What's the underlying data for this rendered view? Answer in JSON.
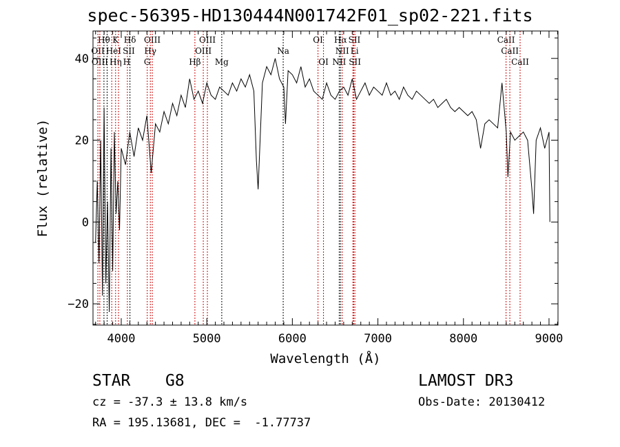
{
  "chart_data": {
    "type": "line",
    "title": "spec-56395-HD130444N001742F01_sp02-221.fits",
    "xlabel": "Wavelength (Å)",
    "ylabel": "Flux (relative)",
    "xlim": [
      3670,
      9105
    ],
    "ylim": [
      -25.2,
      46.7
    ],
    "xticks": [
      4000,
      5000,
      6000,
      7000,
      8000,
      9000
    ],
    "yticks": [
      -20,
      0,
      20,
      40
    ],
    "x": [
      3700,
      3720,
      3740,
      3760,
      3780,
      3800,
      3820,
      3840,
      3860,
      3880,
      3900,
      3920,
      3940,
      3960,
      3980,
      4000,
      4050,
      4100,
      4150,
      4200,
      4250,
      4300,
      4350,
      4400,
      4450,
      4500,
      4550,
      4600,
      4650,
      4700,
      4750,
      4800,
      4850,
      4900,
      4950,
      5000,
      5050,
      5100,
      5150,
      5200,
      5250,
      5300,
      5350,
      5400,
      5450,
      5500,
      5550,
      5580,
      5600,
      5650,
      5700,
      5750,
      5800,
      5850,
      5900,
      5920,
      5950,
      6000,
      6050,
      6100,
      6150,
      6200,
      6250,
      6300,
      6350,
      6400,
      6450,
      6500,
      6550,
      6600,
      6650,
      6700,
      6750,
      6800,
      6850,
      6900,
      6950,
      7000,
      7050,
      7100,
      7150,
      7200,
      7250,
      7300,
      7350,
      7400,
      7450,
      7500,
      7550,
      7600,
      7650,
      7700,
      7750,
      7800,
      7850,
      7900,
      7950,
      8000,
      8050,
      8100,
      8150,
      8200,
      8250,
      8300,
      8350,
      8400,
      8450,
      8500,
      8520,
      8550,
      8600,
      8650,
      8700,
      8750,
      8800,
      8820,
      8850,
      8900,
      8950,
      9000,
      9010
    ],
    "y": [
      -5,
      10,
      -10,
      20,
      -18,
      28,
      -15,
      5,
      -22,
      18,
      -12,
      22,
      2,
      10,
      -2,
      18,
      14,
      22,
      16,
      23,
      20,
      26,
      12,
      24,
      22,
      27,
      24,
      29,
      26,
      31,
      28,
      35,
      30,
      32,
      29,
      34,
      31,
      30,
      33,
      32,
      31,
      34,
      32,
      35,
      33,
      36,
      32,
      15,
      8,
      34,
      38,
      36,
      40,
      35,
      33,
      24,
      37,
      36,
      34,
      38,
      33,
      35,
      32,
      31,
      30,
      34,
      31,
      30,
      32,
      33,
      31,
      35,
      30,
      32,
      34,
      31,
      33,
      32,
      31,
      34,
      31,
      32,
      30,
      33,
      31,
      30,
      32,
      31,
      30,
      29,
      30,
      28,
      29,
      30,
      28,
      27,
      28,
      27,
      26,
      27,
      25,
      18,
      24,
      25,
      24,
      23,
      34,
      22,
      11,
      22,
      20,
      21,
      22,
      20,
      8,
      2,
      20,
      23,
      18,
      22,
      0
    ],
    "lines": [
      {
        "name": "Hθ",
        "wave": 3798,
        "row": 0,
        "color": "#000000"
      },
      {
        "name": "K",
        "wave": 3934,
        "row": 0,
        "color": "#cc0000"
      },
      {
        "name": "Hδ",
        "wave": 4102,
        "row": 0,
        "color": "#000000"
      },
      {
        "name": "OIII",
        "wave": 4363,
        "row": 0,
        "color": "#cc0000"
      },
      {
        "name": "OIII",
        "wave": 5007,
        "row": 0,
        "color": "#cc0000"
      },
      {
        "name": "OI",
        "wave": 6300,
        "row": 0,
        "color": "#cc0000"
      },
      {
        "name": "Hα",
        "wave": 6563,
        "row": 0,
        "color": "#000000"
      },
      {
        "name": "SII",
        "wave": 6716,
        "row": 0,
        "color": "#cc0000"
      },
      {
        "name": "CaII",
        "wave": 8498,
        "row": 0,
        "color": "#cc0000"
      },
      {
        "name": "OII",
        "wave": 3727,
        "row": 1,
        "color": "#cc0000"
      },
      {
        "name": "HeI",
        "wave": 3889,
        "row": 1,
        "color": "#cc0000"
      },
      {
        "name": "SII",
        "wave": 4072,
        "row": 1,
        "color": "#cc0000"
      },
      {
        "name": "Hγ",
        "wave": 4340,
        "row": 1,
        "color": "#cc0000"
      },
      {
        "name": "OIII",
        "wave": 4959,
        "row": 1,
        "color": "#cc0000"
      },
      {
        "name": "Na",
        "wave": 5893,
        "row": 1,
        "color": "#000000"
      },
      {
        "name": "NII",
        "wave": 6583,
        "row": 1,
        "color": "#cc0000"
      },
      {
        "name": "Li",
        "wave": 6708,
        "row": 1,
        "color": "#cc0000"
      },
      {
        "name": "CaII",
        "wave": 8542,
        "row": 1,
        "color": "#cc0000"
      },
      {
        "name": "OIII",
        "wave": 3750,
        "row": 2,
        "color": "#cc0000"
      },
      {
        "name": "Hη",
        "wave": 3835,
        "row": 2,
        "color": "#000000"
      },
      {
        "name": "H",
        "wave": 3968,
        "row": 2,
        "color": "#cc0000"
      },
      {
        "name": "G",
        "wave": 4304,
        "row": 2,
        "color": "#cc0000"
      },
      {
        "name": "Hβ",
        "wave": 4861,
        "row": 2,
        "color": "#cc0000"
      },
      {
        "name": "Mg",
        "wave": 5175,
        "row": 2,
        "color": "#000000"
      },
      {
        "name": "OI",
        "wave": 6364,
        "row": 2,
        "color": "#cc0000"
      },
      {
        "name": "NII",
        "wave": 6548,
        "row": 2,
        "color": "#000000"
      },
      {
        "name": "SII",
        "wave": 6731,
        "row": 2,
        "color": "#cc0000"
      },
      {
        "name": "CaII",
        "wave": 8662,
        "row": 2,
        "color": "#cc0000"
      }
    ]
  },
  "info": {
    "class": "STAR",
    "subclass": "G8",
    "survey": "LAMOST DR3",
    "cz": "cz = -37.3 ± 13.8 km/s",
    "obsdate": "Obs-Date: 20130412",
    "radec": "RA = 195.13681, DEC =  -1.77737"
  }
}
